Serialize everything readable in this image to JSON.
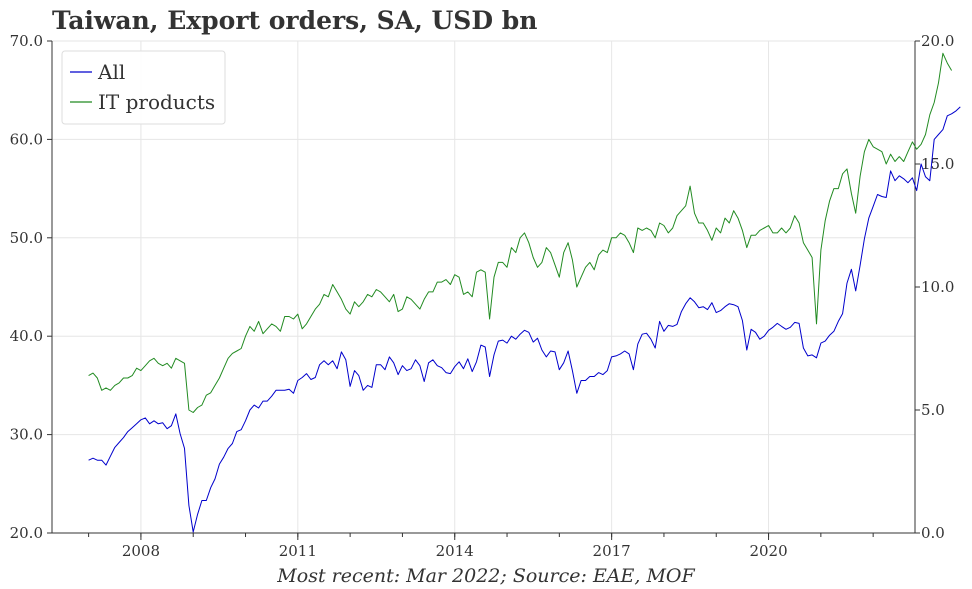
{
  "title": "Taiwan, Export orders, SA, USD bn",
  "footer": "Most recent: Mar 2022; Source: EAE, MOF",
  "chart_data": {
    "type": "line",
    "title": "Taiwan, Export orders, SA, USD bn",
    "x_start": "2007-01",
    "x_end": "2022-03",
    "x_ticks": [
      "2008",
      "2011",
      "2014",
      "2017",
      "2020"
    ],
    "x_tick_values": [
      2008,
      2011,
      2014,
      2017,
      2020
    ],
    "xlim": [
      2006.3,
      2022.8
    ],
    "y_left": {
      "ylim": [
        20,
        70
      ],
      "ticks": [
        "20.0",
        "30.0",
        "40.0",
        "50.0",
        "60.0",
        "70.0"
      ]
    },
    "y_right": {
      "ylim": [
        0,
        20
      ],
      "ticks": [
        "0.0",
        "5.0",
        "10.0",
        "15.0",
        "20.0"
      ]
    },
    "grid": true,
    "legend": "top-left",
    "series": [
      {
        "name": "All",
        "axis": "left",
        "color": "#0000cc",
        "values": [
          27.4,
          27.6,
          27.4,
          27.4,
          26.9,
          27.8,
          28.7,
          29.2,
          29.7,
          30.3,
          30.7,
          31.1,
          31.5,
          31.7,
          31.1,
          31.4,
          31.1,
          31.2,
          30.6,
          30.9,
          32.1,
          30.1,
          28.6,
          22.8,
          20.1,
          21.9,
          23.3,
          23.3,
          24.6,
          25.5,
          27.0,
          27.7,
          28.6,
          29.1,
          30.3,
          30.5,
          31.4,
          32.5,
          33.0,
          32.7,
          33.4,
          33.4,
          33.9,
          34.5,
          34.5,
          34.5,
          34.6,
          34.2,
          35.5,
          35.8,
          36.2,
          35.6,
          35.8,
          37.1,
          37.5,
          37.1,
          37.5,
          36.7,
          38.4,
          37.6,
          34.9,
          36.5,
          36.0,
          34.5,
          35.0,
          34.8,
          37.1,
          37.1,
          36.6,
          37.9,
          37.3,
          36.1,
          37.0,
          36.5,
          36.7,
          37.6,
          37.0,
          35.4,
          37.3,
          37.6,
          37.0,
          36.8,
          36.3,
          36.2,
          36.9,
          37.4,
          36.7,
          37.7,
          36.4,
          37.4,
          39.1,
          38.9,
          35.9,
          38.1,
          39.5,
          39.6,
          39.3,
          40.0,
          39.7,
          40.2,
          40.6,
          40.4,
          39.4,
          39.8,
          38.6,
          37.9,
          38.5,
          38.4,
          36.6,
          37.3,
          38.5,
          36.5,
          34.2,
          35.5,
          35.5,
          35.9,
          35.9,
          36.3,
          36.1,
          36.5,
          37.9,
          38.0,
          38.2,
          38.5,
          38.2,
          36.6,
          39.2,
          40.2,
          40.3,
          39.7,
          38.8,
          41.5,
          40.5,
          41.1,
          41.0,
          41.2,
          42.5,
          43.3,
          43.9,
          43.5,
          42.9,
          43.0,
          42.7,
          43.4,
          42.4,
          42.6,
          43.0,
          43.3,
          43.2,
          43.0,
          41.6,
          38.6,
          40.7,
          40.4,
          39.7,
          40.0,
          40.6,
          40.9,
          41.3,
          41.0,
          40.7,
          40.9,
          41.4,
          41.3,
          38.8,
          38.0,
          38.1,
          37.8,
          39.3,
          39.5,
          40.1,
          40.5,
          41.5,
          42.3,
          45.4,
          46.8,
          44.6,
          47.2,
          49.9,
          52.0,
          53.2,
          54.4,
          54.2,
          54.1,
          56.8,
          55.8,
          56.3,
          56.0,
          55.6,
          56.1,
          54.8,
          57.5,
          56.2,
          55.8,
          60.0,
          60.5,
          61.0,
          62.4,
          62.6,
          62.9,
          63.3
        ]
      },
      {
        "name": "IT products",
        "axis": "right",
        "color": "#228b22",
        "values": [
          6.4,
          6.5,
          6.3,
          5.8,
          5.9,
          5.8,
          6.0,
          6.1,
          6.3,
          6.3,
          6.4,
          6.7,
          6.6,
          6.8,
          7.0,
          7.1,
          6.9,
          6.8,
          6.9,
          6.7,
          7.1,
          7.0,
          6.9,
          5.0,
          4.9,
          5.1,
          5.2,
          5.6,
          5.7,
          6.0,
          6.3,
          6.7,
          7.1,
          7.3,
          7.4,
          7.5,
          8.0,
          8.4,
          8.2,
          8.6,
          8.1,
          8.3,
          8.5,
          8.4,
          8.2,
          8.8,
          8.8,
          8.7,
          8.9,
          8.3,
          8.5,
          8.8,
          9.1,
          9.3,
          9.7,
          9.6,
          10.1,
          9.8,
          9.5,
          9.1,
          8.9,
          9.4,
          9.2,
          9.4,
          9.7,
          9.6,
          9.9,
          9.8,
          9.6,
          9.4,
          9.7,
          9.0,
          9.1,
          9.6,
          9.5,
          9.3,
          9.1,
          9.5,
          9.8,
          9.8,
          10.2,
          10.2,
          10.3,
          10.1,
          10.5,
          10.4,
          9.7,
          9.8,
          9.6,
          10.6,
          10.7,
          10.6,
          8.7,
          10.4,
          11.0,
          11.0,
          10.8,
          11.6,
          11.4,
          12.0,
          12.2,
          11.8,
          11.2,
          10.8,
          11.0,
          11.6,
          11.4,
          10.9,
          10.4,
          11.4,
          11.8,
          11.1,
          10.0,
          10.4,
          10.8,
          11.0,
          10.7,
          11.3,
          11.5,
          11.4,
          12.0,
          12.0,
          12.2,
          12.1,
          11.8,
          11.4,
          12.4,
          12.3,
          12.4,
          12.3,
          12.0,
          12.6,
          12.5,
          12.2,
          12.4,
          12.9,
          13.1,
          13.3,
          14.1,
          13.0,
          12.6,
          12.6,
          12.3,
          11.9,
          12.4,
          12.2,
          12.8,
          12.6,
          13.1,
          12.8,
          12.3,
          11.6,
          12.1,
          12.1,
          12.3,
          12.4,
          12.5,
          12.2,
          12.2,
          12.4,
          12.2,
          12.4,
          12.9,
          12.6,
          11.8,
          11.5,
          11.2,
          8.5,
          11.5,
          12.7,
          13.5,
          14.0,
          14.0,
          14.6,
          14.8,
          13.8,
          13.0,
          14.5,
          15.5,
          16.0,
          15.7,
          15.6,
          15.5,
          15.0,
          15.4,
          15.1,
          15.3,
          15.1,
          15.5,
          15.9,
          15.6,
          15.8,
          16.2,
          17.0,
          17.5,
          18.3,
          19.5,
          19.1,
          18.8
        ]
      }
    ]
  }
}
